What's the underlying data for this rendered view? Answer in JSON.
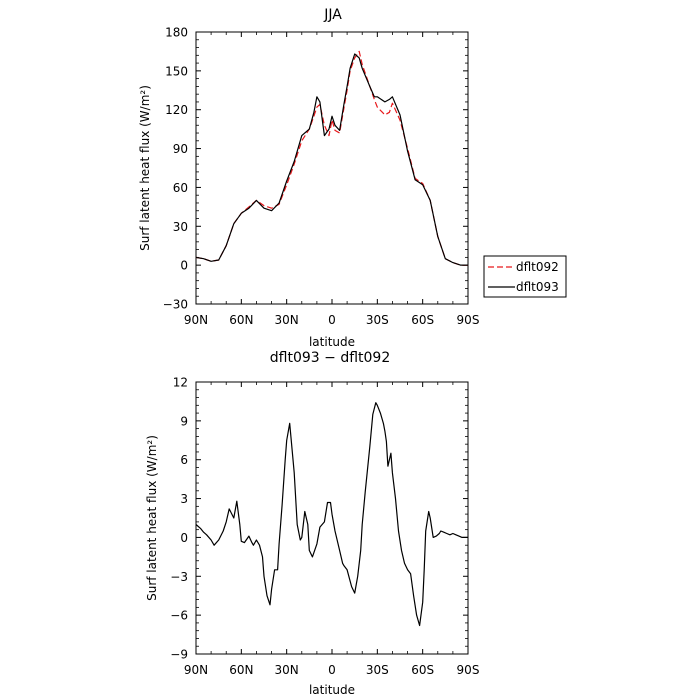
{
  "chart_data": [
    {
      "type": "line",
      "title": "JJA",
      "xlabel": "latitude",
      "ylabel": "Surf latent heat flux (W/m²)",
      "xlim": [
        90,
        -90
      ],
      "ylim": [
        -30,
        180
      ],
      "xticks": [
        90,
        60,
        30,
        0,
        -30,
        -60,
        -90
      ],
      "xtick_labels": [
        "90N",
        "60N",
        "30N",
        "0",
        "30S",
        "60S",
        "90S"
      ],
      "yticks": [
        -30,
        0,
        30,
        60,
        90,
        120,
        150,
        180
      ],
      "ytick_labels": [
        "−30",
        "0",
        "30",
        "60",
        "90",
        "120",
        "150",
        "180"
      ],
      "legend": "outside-right",
      "x": [
        90,
        85,
        80,
        75,
        70,
        65,
        60,
        55,
        50,
        45,
        40,
        35,
        30,
        25,
        20,
        15,
        12,
        10,
        8,
        5,
        2,
        0,
        -2,
        -5,
        -8,
        -10,
        -12,
        -15,
        -18,
        -20,
        -25,
        -28,
        -30,
        -35,
        -38,
        -40,
        -45,
        -50,
        -55,
        -60,
        -65,
        -70,
        -75,
        -80,
        -85,
        -90
      ],
      "series": [
        {
          "name": "dflt092",
          "color": "#e8191c",
          "dash": "dashed",
          "values": [
            6,
            5,
            3,
            4,
            15,
            32,
            40,
            45,
            50,
            46,
            44,
            47,
            62,
            78,
            96,
            105,
            115,
            122,
            124,
            108,
            100,
            112,
            104,
            102,
            122,
            135,
            150,
            160,
            165,
            155,
            138,
            128,
            122,
            116,
            118,
            125,
            112,
            90,
            67,
            63,
            50,
            22,
            5,
            2,
            0,
            0
          ]
        },
        {
          "name": "dflt093",
          "color": "#000000",
          "dash": "solid",
          "values": [
            6,
            5,
            3,
            4,
            15,
            32,
            40,
            44,
            50,
            44,
            42,
            48,
            65,
            80,
            100,
            105,
            118,
            130,
            126,
            100,
            105,
            115,
            108,
            104,
            125,
            138,
            152,
            163,
            160,
            152,
            138,
            130,
            130,
            126,
            128,
            130,
            116,
            88,
            66,
            62,
            50,
            22,
            5,
            2,
            0,
            0
          ]
        }
      ]
    },
    {
      "type": "line",
      "title": "dflt093 − dflt092",
      "xlabel": "latitude",
      "ylabel": "Surf latent heat flux (W/m²)",
      "xlim": [
        90,
        -90
      ],
      "ylim": [
        -9,
        12
      ],
      "xticks": [
        90,
        60,
        30,
        0,
        -30,
        -60,
        -90
      ],
      "xtick_labels": [
        "90N",
        "60N",
        "30N",
        "0",
        "30S",
        "60S",
        "90S"
      ],
      "yticks": [
        -9,
        -6,
        -3,
        0,
        3,
        6,
        9,
        12
      ],
      "ytick_labels": [
        "−9",
        "−6",
        "−3",
        "0",
        "3",
        "6",
        "9",
        "12"
      ],
      "x": [
        90,
        87,
        85,
        83,
        80,
        78,
        75,
        72,
        70,
        68,
        65,
        63,
        61,
        60,
        58,
        55,
        53,
        52,
        50,
        48,
        46,
        45,
        43,
        41,
        40,
        38,
        36,
        35,
        33,
        31,
        30,
        28,
        25,
        23,
        21,
        20,
        18,
        16,
        15,
        13,
        10,
        8,
        5,
        3,
        1,
        0,
        -2,
        -5,
        -7,
        -8,
        -10,
        -13,
        -15,
        -17,
        -19,
        -20,
        -22,
        -25,
        -27,
        -29,
        -30,
        -32,
        -34,
        -35,
        -36,
        -37,
        -39,
        -40,
        -42,
        -44,
        -46,
        -48,
        -50,
        -52,
        -54,
        -56,
        -58,
        -60,
        -61,
        -62,
        -64,
        -65,
        -67,
        -69,
        -71,
        -72,
        -74,
        -76,
        -78,
        -80,
        -82,
        -84,
        -86,
        -88,
        -90
      ],
      "series": [
        {
          "color": "#000000",
          "values": [
            1,
            0.7,
            0.4,
            0.2,
            -0.2,
            -0.6,
            -0.2,
            0.5,
            1.2,
            2.2,
            1.5,
            2.8,
            1.0,
            -0.3,
            -0.4,
            0.1,
            -0.4,
            -0.6,
            -0.2,
            -0.6,
            -1.5,
            -3.0,
            -4.5,
            -5.2,
            -4.0,
            -2.5,
            -2.5,
            -0.5,
            2.5,
            6.0,
            7.5,
            8.8,
            5.0,
            1.0,
            -0.2,
            0.0,
            2.0,
            1.0,
            -1.0,
            -1.5,
            -0.5,
            0.8,
            1.2,
            2.7,
            2.7,
            1.8,
            0.5,
            -1.0,
            -2.0,
            -2.2,
            -2.5,
            -3.8,
            -4.3,
            -3.0,
            -1.0,
            1.0,
            3.5,
            7.0,
            9.5,
            10.4,
            10.2,
            9.6,
            8.8,
            8.2,
            7.4,
            5.5,
            6.5,
            5.0,
            3.0,
            0.5,
            -1.0,
            -2.0,
            -2.5,
            -2.8,
            -4.5,
            -6.0,
            -6.8,
            -5.0,
            -2.5,
            0.5,
            2.0,
            1.5,
            0.0,
            0.1,
            0.3,
            0.5,
            0.4,
            0.3,
            0.2,
            0.3,
            0.2,
            0.1,
            0.0,
            0.0,
            0.0
          ]
        }
      ]
    }
  ]
}
